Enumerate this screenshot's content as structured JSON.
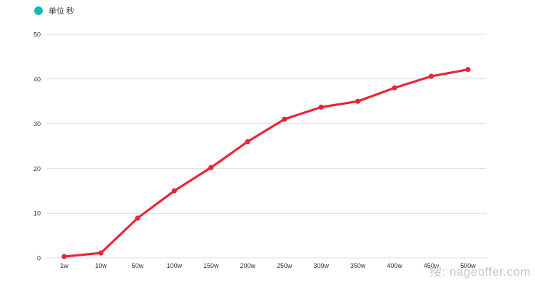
{
  "colors": {
    "legend_dot": "#16b8b8",
    "series_line": "#ea2438",
    "grid": "#dcdcdc",
    "axis_text": "#333333",
    "watermark": "#c8c8c8"
  },
  "watermark": "搜: nageoffer.com",
  "chart_data": {
    "type": "line",
    "title": "",
    "xlabel": "",
    "ylabel": "",
    "legend": {
      "label": "单位 秒",
      "position": "top-left"
    },
    "categories": [
      "1w",
      "10w",
      "50w",
      "100w",
      "150w",
      "200w",
      "250w",
      "300w",
      "350w",
      "400w",
      "450w",
      "500w"
    ],
    "series": [
      {
        "values": [
          0.3,
          1.1,
          8.9,
          15.0,
          20.2,
          26.0,
          31.0,
          33.7,
          35.0,
          38.0,
          40.6,
          42.1
        ]
      }
    ],
    "ylim": [
      0,
      50
    ],
    "yticks": [
      0,
      10,
      20,
      30,
      40,
      50
    ],
    "grid": true
  }
}
